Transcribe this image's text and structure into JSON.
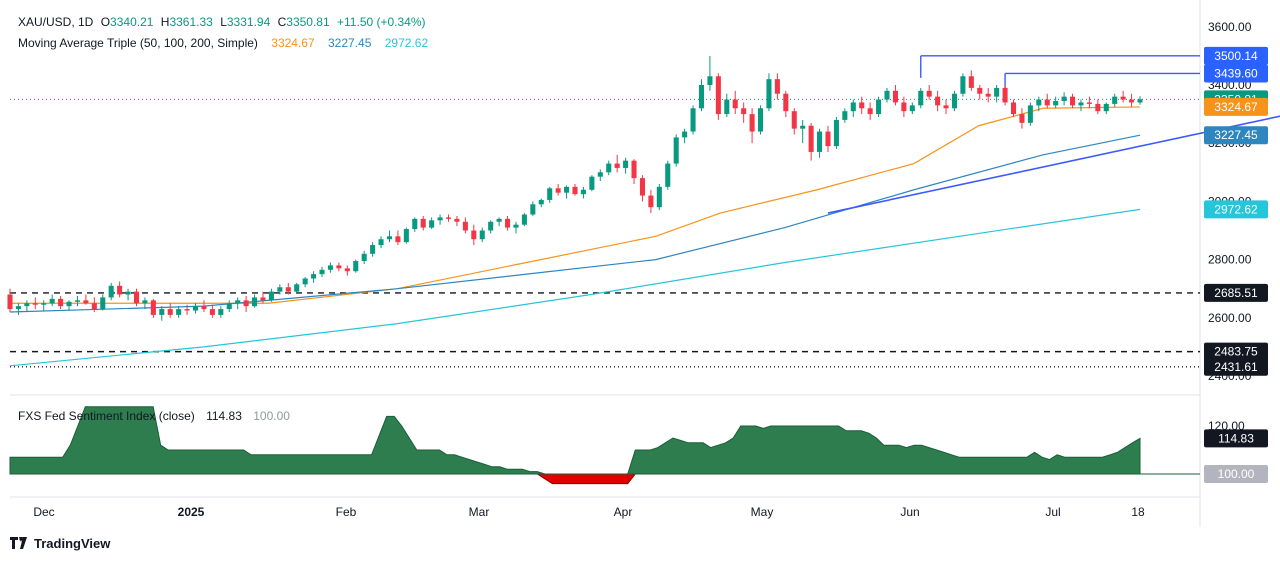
{
  "header": {
    "symbol": "XAU/USD, 1D",
    "open_label": "O",
    "open": "3340.21",
    "high_label": "H",
    "high": "3361.33",
    "low_label": "L",
    "low": "3331.94",
    "close_label": "C",
    "close": "3350.81",
    "change": "+11.50 (+0.34%)",
    "ma_title": "Moving Average Triple (50, 100, 200, Simple)",
    "ma50": "3324.67",
    "ma100": "3227.45",
    "ma200": "2972.62"
  },
  "indicator": {
    "title": "FXS Fed Sentiment Index (close)",
    "value": "114.83",
    "base": "100.00",
    "ticks": [
      "120.00"
    ]
  },
  "brand": "TradingView",
  "colors": {
    "up": "#089981",
    "down": "#f23645",
    "ma50": "#f7931a",
    "ma100": "#2e86c1",
    "ma200": "#26c6da",
    "trend": "#3d5afe",
    "area": "#2e7d4f",
    "area_neg": "#e00000"
  },
  "chart_data": {
    "type": "candlestick",
    "title": "XAU/USD, 1D",
    "x_tick_labels": [
      "Dec",
      "2025",
      "Feb",
      "Mar",
      "Apr",
      "May",
      "Jun",
      "Jul",
      "18"
    ],
    "y_tick_labels": [
      "3600.00",
      "3400.00",
      "3200.00",
      "3000.00",
      "2800.00",
      "2600.00",
      "2400.00"
    ],
    "ylim": [
      2400,
      3620
    ],
    "price_labels": [
      {
        "text": "3500.14",
        "value": 3500.14,
        "color": "#2962ff"
      },
      {
        "text": "3439.60",
        "value": 3439.6,
        "color": "#2962ff"
      },
      {
        "text": "3350.81",
        "value": 3350.81,
        "color": "#089981"
      },
      {
        "text": "3324.67",
        "value": 3324.67,
        "color": "#f7931a"
      },
      {
        "text": "3227.45",
        "value": 3227.45,
        "color": "#2e86c1"
      },
      {
        "text": "2972.62",
        "value": 2972.62,
        "color": "#26c6da"
      },
      {
        "text": "2685.51",
        "value": 2685.51,
        "color": "#131722"
      },
      {
        "text": "2483.75",
        "value": 2483.75,
        "color": "#131722"
      },
      {
        "text": "2431.61",
        "value": 2431.61,
        "color": "#131722"
      }
    ],
    "horizontal_levels": [
      {
        "value": 3500.14,
        "from_date": "2025-04-22",
        "style": "solid"
      },
      {
        "value": 3439.6,
        "from_date": "2025-05-06",
        "style": "solid"
      },
      {
        "value": 2685.51,
        "style": "dashed"
      },
      {
        "value": 2483.75,
        "style": "dashed"
      },
      {
        "value": 2431.61,
        "style": "dotted"
      }
    ],
    "trendline": [
      {
        "date": "2025-04-07",
        "value": 2960
      },
      {
        "date": "2025-06-27",
        "value": 3320
      }
    ],
    "ma_series": [
      {
        "name": "SMA 50",
        "points": [
          [
            0,
            2650
          ],
          [
            20,
            2650
          ],
          [
            40,
            2650
          ],
          [
            60,
            2700
          ],
          [
            80,
            2790
          ],
          [
            100,
            2880
          ],
          [
            110,
            2960
          ],
          [
            125,
            3040
          ],
          [
            140,
            3130
          ],
          [
            150,
            3260
          ],
          [
            160,
            3320
          ],
          [
            175,
            3324.67
          ]
        ]
      },
      {
        "name": "SMA 100",
        "points": [
          [
            0,
            2620
          ],
          [
            30,
            2640
          ],
          [
            60,
            2700
          ],
          [
            80,
            2750
          ],
          [
            100,
            2800
          ],
          [
            120,
            2910
          ],
          [
            140,
            3040
          ],
          [
            160,
            3160
          ],
          [
            175,
            3227.45
          ]
        ]
      },
      {
        "name": "SMA 200",
        "points": [
          [
            0,
            2435
          ],
          [
            30,
            2500
          ],
          [
            60,
            2580
          ],
          [
            90,
            2680
          ],
          [
            120,
            2790
          ],
          [
            150,
            2890
          ],
          [
            175,
            2972.62
          ]
        ]
      }
    ],
    "ohlc": [
      [
        2680,
        2700,
        2620,
        2630
      ],
      [
        2630,
        2650,
        2610,
        2640
      ],
      [
        2640,
        2660,
        2620,
        2650
      ],
      [
        2650,
        2670,
        2630,
        2645
      ],
      [
        2645,
        2660,
        2625,
        2650
      ],
      [
        2650,
        2680,
        2640,
        2665
      ],
      [
        2665,
        2675,
        2630,
        2640
      ],
      [
        2640,
        2660,
        2625,
        2655
      ],
      [
        2655,
        2675,
        2640,
        2660
      ],
      [
        2660,
        2680,
        2645,
        2650
      ],
      [
        2650,
        2670,
        2620,
        2630
      ],
      [
        2630,
        2680,
        2625,
        2670
      ],
      [
        2670,
        2720,
        2660,
        2710
      ],
      [
        2710,
        2725,
        2670,
        2680
      ],
      [
        2680,
        2700,
        2660,
        2690
      ],
      [
        2690,
        2700,
        2640,
        2650
      ],
      [
        2650,
        2670,
        2630,
        2660
      ],
      [
        2660,
        2665,
        2600,
        2610
      ],
      [
        2610,
        2640,
        2590,
        2630
      ],
      [
        2630,
        2650,
        2600,
        2610
      ],
      [
        2610,
        2640,
        2600,
        2630
      ],
      [
        2630,
        2645,
        2610,
        2625
      ],
      [
        2625,
        2650,
        2615,
        2640
      ],
      [
        2640,
        2660,
        2620,
        2630
      ],
      [
        2630,
        2645,
        2600,
        2610
      ],
      [
        2610,
        2640,
        2600,
        2630
      ],
      [
        2630,
        2660,
        2620,
        2650
      ],
      [
        2650,
        2670,
        2630,
        2660
      ],
      [
        2660,
        2675,
        2620,
        2640
      ],
      [
        2640,
        2680,
        2635,
        2670
      ],
      [
        2670,
        2690,
        2650,
        2660
      ],
      [
        2660,
        2700,
        2655,
        2690
      ],
      [
        2690,
        2715,
        2680,
        2705
      ],
      [
        2705,
        2720,
        2680,
        2690
      ],
      [
        2690,
        2720,
        2685,
        2715
      ],
      [
        2715,
        2740,
        2705,
        2735
      ],
      [
        2735,
        2760,
        2720,
        2750
      ],
      [
        2750,
        2775,
        2740,
        2765
      ],
      [
        2765,
        2790,
        2755,
        2780
      ],
      [
        2780,
        2790,
        2760,
        2770
      ],
      [
        2770,
        2780,
        2745,
        2760
      ],
      [
        2760,
        2800,
        2755,
        2795
      ],
      [
        2795,
        2830,
        2785,
        2820
      ],
      [
        2820,
        2860,
        2810,
        2850
      ],
      [
        2850,
        2880,
        2840,
        2870
      ],
      [
        2870,
        2900,
        2860,
        2880
      ],
      [
        2880,
        2900,
        2850,
        2860
      ],
      [
        2860,
        2910,
        2855,
        2905
      ],
      [
        2905,
        2945,
        2895,
        2940
      ],
      [
        2940,
        2950,
        2900,
        2910
      ],
      [
        2910,
        2945,
        2905,
        2935
      ],
      [
        2935,
        2955,
        2920,
        2945
      ],
      [
        2945,
        2955,
        2930,
        2940
      ],
      [
        2940,
        2950,
        2915,
        2930
      ],
      [
        2930,
        2945,
        2890,
        2900
      ],
      [
        2900,
        2920,
        2850,
        2870
      ],
      [
        2870,
        2910,
        2860,
        2900
      ],
      [
        2900,
        2935,
        2890,
        2930
      ],
      [
        2930,
        2945,
        2915,
        2940
      ],
      [
        2940,
        2950,
        2900,
        2910
      ],
      [
        2910,
        2930,
        2890,
        2920
      ],
      [
        2920,
        2960,
        2915,
        2955
      ],
      [
        2955,
        3000,
        2950,
        2990
      ],
      [
        2990,
        3010,
        2980,
        3005
      ],
      [
        3005,
        3050,
        2995,
        3045
      ],
      [
        3045,
        3060,
        3020,
        3030
      ],
      [
        3030,
        3055,
        3010,
        3050
      ],
      [
        3050,
        3060,
        3020,
        3025
      ],
      [
        3025,
        3050,
        3010,
        3040
      ],
      [
        3040,
        3090,
        3035,
        3085
      ],
      [
        3085,
        3110,
        3070,
        3100
      ],
      [
        3100,
        3140,
        3090,
        3130
      ],
      [
        3130,
        3160,
        3100,
        3115
      ],
      [
        3115,
        3150,
        3095,
        3140
      ],
      [
        3140,
        3145,
        3060,
        3080
      ],
      [
        3080,
        3090,
        3000,
        3020
      ],
      [
        3020,
        3040,
        2960,
        2980
      ],
      [
        2980,
        3060,
        2970,
        3050
      ],
      [
        3050,
        3140,
        3040,
        3130
      ],
      [
        3130,
        3230,
        3120,
        3220
      ],
      [
        3220,
        3250,
        3200,
        3240
      ],
      [
        3240,
        3330,
        3230,
        3320
      ],
      [
        3320,
        3420,
        3310,
        3400
      ],
      [
        3400,
        3500,
        3380,
        3430
      ],
      [
        3430,
        3440,
        3280,
        3300
      ],
      [
        3300,
        3370,
        3290,
        3350
      ],
      [
        3350,
        3380,
        3300,
        3320
      ],
      [
        3320,
        3340,
        3270,
        3300
      ],
      [
        3300,
        3320,
        3200,
        3240
      ],
      [
        3240,
        3330,
        3230,
        3320
      ],
      [
        3320,
        3440,
        3310,
        3420
      ],
      [
        3420,
        3440,
        3350,
        3370
      ],
      [
        3370,
        3380,
        3290,
        3310
      ],
      [
        3310,
        3320,
        3230,
        3250
      ],
      [
        3250,
        3280,
        3200,
        3260
      ],
      [
        3260,
        3270,
        3140,
        3170
      ],
      [
        3170,
        3250,
        3150,
        3240
      ],
      [
        3240,
        3260,
        3170,
        3190
      ],
      [
        3190,
        3290,
        3180,
        3280
      ],
      [
        3280,
        3320,
        3270,
        3310
      ],
      [
        3310,
        3350,
        3290,
        3340
      ],
      [
        3340,
        3360,
        3300,
        3320
      ],
      [
        3320,
        3340,
        3280,
        3300
      ],
      [
        3300,
        3360,
        3290,
        3350
      ],
      [
        3350,
        3390,
        3340,
        3380
      ],
      [
        3380,
        3400,
        3330,
        3340
      ],
      [
        3340,
        3360,
        3290,
        3310
      ],
      [
        3310,
        3340,
        3300,
        3330
      ],
      [
        3330,
        3390,
        3320,
        3380
      ],
      [
        3380,
        3400,
        3350,
        3360
      ],
      [
        3360,
        3380,
        3310,
        3330
      ],
      [
        3330,
        3350,
        3300,
        3320
      ],
      [
        3320,
        3380,
        3310,
        3370
      ],
      [
        3370,
        3440,
        3360,
        3430
      ],
      [
        3430,
        3450,
        3380,
        3390
      ],
      [
        3390,
        3400,
        3350,
        3370
      ],
      [
        3370,
        3390,
        3340,
        3360
      ],
      [
        3360,
        3400,
        3340,
        3390
      ],
      [
        3390,
        3400,
        3330,
        3340
      ],
      [
        3340,
        3350,
        3290,
        3300
      ],
      [
        3300,
        3320,
        3250,
        3270
      ],
      [
        3270,
        3340,
        3260,
        3330
      ],
      [
        3330,
        3360,
        3310,
        3350
      ],
      [
        3350,
        3370,
        3320,
        3330
      ],
      [
        3330,
        3360,
        3320,
        3345
      ],
      [
        3345,
        3375,
        3330,
        3360
      ],
      [
        3360,
        3370,
        3320,
        3330
      ],
      [
        3330,
        3350,
        3310,
        3340
      ],
      [
        3340,
        3360,
        3320,
        3335
      ],
      [
        3335,
        3350,
        3300,
        3310
      ],
      [
        3310,
        3340,
        3300,
        3335
      ],
      [
        3335,
        3370,
        3325,
        3360
      ],
      [
        3360,
        3380,
        3340,
        3350
      ],
      [
        3350,
        3370,
        3325,
        3340
      ],
      [
        3340,
        3361.33,
        3331.94,
        3350.81
      ]
    ],
    "sentiment_index": {
      "name": "FXS Fed Sentiment Index (close)",
      "last": 114.83,
      "base": 100.0,
      "values": [
        107,
        107,
        107,
        107,
        107,
        107,
        107,
        107,
        112,
        120,
        128,
        128,
        128,
        128,
        128,
        128,
        128,
        128,
        128,
        128,
        112,
        110,
        110,
        110,
        110,
        110,
        110,
        110,
        110,
        110,
        110,
        110,
        108,
        108,
        108,
        108,
        108,
        108,
        108,
        108,
        108,
        108,
        108,
        108,
        108,
        108,
        108,
        108,
        108,
        116,
        124,
        124,
        120,
        115,
        110,
        110,
        110,
        110,
        108,
        108,
        107,
        106,
        105,
        104,
        103,
        103,
        102,
        102,
        102,
        101,
        101,
        98,
        96,
        96,
        96,
        96,
        96,
        96,
        96,
        96,
        96,
        96,
        96,
        110,
        110,
        110,
        111,
        113,
        115,
        114,
        113,
        113,
        113,
        111,
        112,
        113,
        115,
        120,
        120,
        120,
        119,
        120,
        120,
        120,
        120,
        120,
        120,
        120,
        120,
        120,
        120,
        118,
        118,
        118,
        117,
        115,
        112,
        112,
        112,
        111,
        112,
        112,
        111,
        110,
        109,
        108,
        107,
        107,
        107,
        107,
        107,
        107,
        107,
        107,
        107,
        107,
        109,
        107,
        106,
        108,
        107,
        107,
        107,
        107,
        107,
        107,
        108,
        109,
        111,
        113,
        114.83
      ]
    }
  }
}
